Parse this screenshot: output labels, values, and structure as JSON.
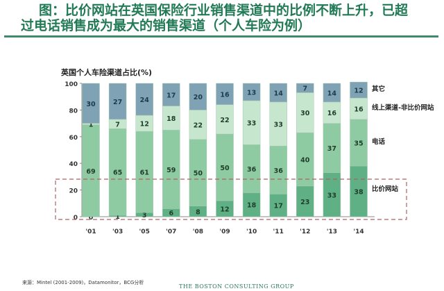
{
  "title": {
    "line1": "图：比价网站在英国保险行业销售渠道中的比例不断上升，已超",
    "line2": "过电话销售成为最大的销售渠道（个人车险为例）"
  },
  "chart_data": {
    "type": "bar",
    "stacked": true,
    "title": "英国个人车险渠道占比(%)",
    "ylabel": "英国个人车险渠道占比(%)",
    "ylim": [
      0,
      100
    ],
    "yticks": [
      0,
      20,
      40,
      60,
      80,
      100
    ],
    "categories": [
      "'01",
      "'03",
      "'05",
      "'07",
      "'08",
      "'09",
      "'10",
      "'11",
      "'12",
      "'13",
      "'14"
    ],
    "series": [
      {
        "name": "比价网站",
        "color": "#5fb084",
        "values": [
          0,
          1,
          3,
          6,
          8,
          12,
          18,
          17,
          23,
          33,
          38
        ]
      },
      {
        "name": "电话",
        "color": "#8ecaa2",
        "values": [
          69,
          65,
          61,
          59,
          50,
          50,
          36,
          36,
          40,
          37,
          35
        ]
      },
      {
        "name": "线上渠道-非比价网站",
        "color": "#c6e6cd",
        "values": [
          1,
          7,
          12,
          18,
          22,
          22,
          33,
          33,
          30,
          16,
          16
        ]
      },
      {
        "name": "其它",
        "color": "#7fa3b4",
        "values": [
          30,
          27,
          24,
          17,
          20,
          16,
          13,
          14,
          7,
          14,
          12
        ]
      }
    ],
    "legend": "right",
    "annotation": "dashed box highlighting 比价网站"
  },
  "footer": {
    "source": "来源：Mintel (2001-2009)，Datamonitor，BCG分析",
    "logo": "THE BOSTON CONSULTING GROUP"
  }
}
